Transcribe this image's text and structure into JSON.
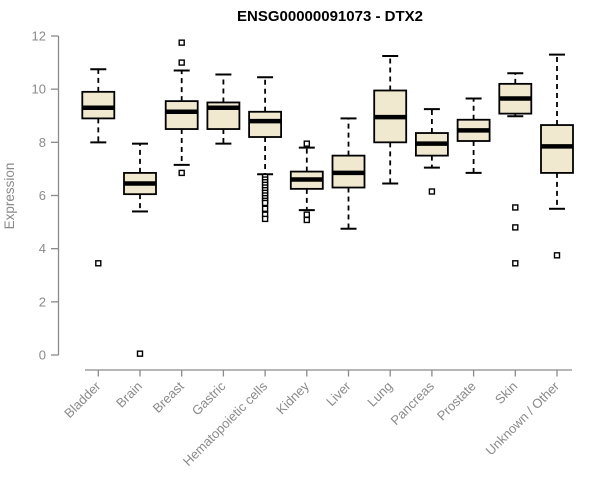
{
  "chart_data": {
    "type": "boxplot",
    "title": "ENSG00000091073 - DTX2",
    "ylabel": "Expression",
    "xlabel": "",
    "ylim": [
      0,
      12
    ],
    "yticks": [
      0,
      2,
      4,
      6,
      8,
      10,
      12
    ],
    "grid": false,
    "legend": "none",
    "box_fill": "#F0E9D0",
    "box_stroke": "#000000",
    "axis_color": "#8A8A8A",
    "title_color": "#000000",
    "categories": [
      "Bladder",
      "Brain",
      "Breast",
      "Gastric",
      "Hematopoietic cells",
      "Kidney",
      "Liver",
      "Lung",
      "Pancreas",
      "Prostate",
      "Skin",
      "Unknown / Other"
    ],
    "series": [
      {
        "category": "Bladder",
        "whisker_low": 8.0,
        "q1": 8.9,
        "median": 9.3,
        "q3": 9.9,
        "whisker_high": 10.75,
        "outliers": [
          3.45
        ]
      },
      {
        "category": "Brain",
        "whisker_low": 5.4,
        "q1": 6.05,
        "median": 6.45,
        "q3": 6.85,
        "whisker_high": 7.95,
        "outliers": [
          0.05
        ]
      },
      {
        "category": "Breast",
        "whisker_low": 7.15,
        "q1": 8.5,
        "median": 9.15,
        "q3": 9.55,
        "whisker_high": 10.7,
        "outliers": [
          11.75,
          11.0,
          6.85
        ]
      },
      {
        "category": "Gastric",
        "whisker_low": 7.95,
        "q1": 8.5,
        "median": 9.3,
        "q3": 9.5,
        "whisker_high": 10.55,
        "outliers": []
      },
      {
        "category": "Hematopoietic cells",
        "whisker_low": 6.8,
        "q1": 8.2,
        "median": 8.8,
        "q3": 9.15,
        "whisker_high": 10.45,
        "outliers": [
          6.7,
          6.6,
          6.5,
          6.4,
          6.3,
          6.2,
          6.1,
          6.0,
          5.9,
          5.8,
          5.72,
          5.5,
          5.28,
          5.12
        ]
      },
      {
        "category": "Kidney",
        "whisker_low": 5.45,
        "q1": 6.25,
        "median": 6.6,
        "q3": 6.9,
        "whisker_high": 7.8,
        "outliers": [
          7.95,
          5.28,
          5.08
        ]
      },
      {
        "category": "Liver",
        "whisker_low": 4.75,
        "q1": 6.3,
        "median": 6.85,
        "q3": 7.5,
        "whisker_high": 8.9,
        "outliers": []
      },
      {
        "category": "Lung",
        "whisker_low": 6.45,
        "q1": 8.0,
        "median": 8.95,
        "q3": 9.95,
        "whisker_high": 11.25,
        "outliers": []
      },
      {
        "category": "Pancreas",
        "whisker_low": 7.05,
        "q1": 7.5,
        "median": 7.95,
        "q3": 8.35,
        "whisker_high": 9.25,
        "outliers": [
          6.15
        ]
      },
      {
        "category": "Prostate",
        "whisker_low": 6.85,
        "q1": 8.05,
        "median": 8.45,
        "q3": 8.85,
        "whisker_high": 9.65,
        "outliers": []
      },
      {
        "category": "Skin",
        "whisker_low": 8.98,
        "q1": 9.08,
        "median": 9.65,
        "q3": 10.2,
        "whisker_high": 10.6,
        "outliers": [
          5.55,
          4.8,
          3.45
        ]
      },
      {
        "category": "Unknown / Other",
        "whisker_low": 5.5,
        "q1": 6.85,
        "median": 7.85,
        "q3": 8.65,
        "whisker_high": 11.3,
        "outliers": [
          3.75
        ]
      }
    ]
  }
}
